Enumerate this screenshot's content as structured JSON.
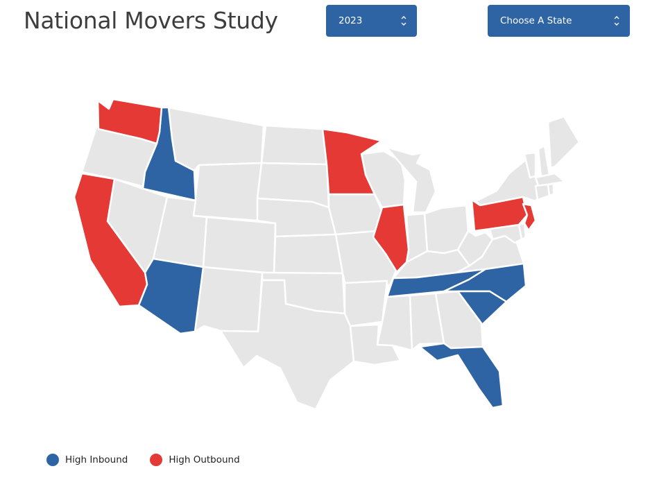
{
  "header": {
    "title": "National Movers Study"
  },
  "controls": {
    "year_selected": "2023",
    "state_selected": "Choose A State"
  },
  "map": {
    "high_inbound_states": [
      "Idaho",
      "Arizona",
      "Tennessee",
      "North Carolina",
      "South Carolina",
      "Florida"
    ],
    "high_outbound_states": [
      "Washington",
      "California",
      "Minnesota",
      "Illinois",
      "Pennsylvania",
      "New Jersey"
    ]
  },
  "legend": {
    "inbound_label": "High Inbound",
    "outbound_label": "High Outbound"
  },
  "colors": {
    "inbound": "#2e64a3",
    "outbound": "#e53935",
    "neutral": "#e6e6e6",
    "button": "#2e64a3"
  }
}
